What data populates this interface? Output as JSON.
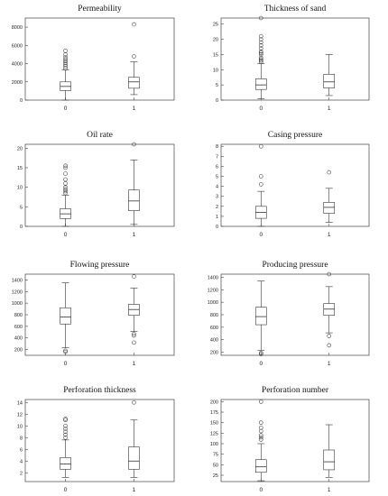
{
  "chart_data": [
    {
      "type": "box",
      "title": "Permeability",
      "categories": [
        "0",
        "1"
      ],
      "ylim": [
        0,
        9000
      ],
      "yticks": [
        0,
        2000,
        4000,
        6000,
        8000
      ],
      "ytick_labels": [
        "0",
        "2000",
        "4000",
        "6000",
        "8000"
      ],
      "boxes": [
        {
          "category": "0",
          "whisker_low": 0,
          "q1": 1050,
          "median": 1500,
          "q3": 2000,
          "whisker_high": 3300,
          "outliers": [
            3500,
            3700,
            3900,
            4100,
            4300,
            4500,
            4700,
            5000,
            5400
          ]
        },
        {
          "category": "1",
          "whisker_low": 600,
          "q1": 1300,
          "median": 2000,
          "q3": 2500,
          "whisker_high": 4200,
          "outliers": [
            4800,
            8300
          ]
        }
      ]
    },
    {
      "type": "box",
      "title": "Thickness of sand",
      "categories": [
        "0",
        "1"
      ],
      "ylim": [
        0,
        27
      ],
      "yticks": [
        0,
        5,
        10,
        15,
        20,
        25
      ],
      "ytick_labels": [
        "0",
        "5",
        "10",
        "15",
        "20",
        "25"
      ],
      "boxes": [
        {
          "category": "0",
          "whisker_low": 0.5,
          "q1": 3.5,
          "median": 5,
          "q3": 7,
          "whisker_high": 12,
          "outliers": [
            12.5,
            13,
            13.5,
            14,
            15,
            15.5,
            16,
            17,
            18,
            19,
            20,
            21,
            27
          ]
        },
        {
          "category": "1",
          "whisker_low": 1.5,
          "q1": 4,
          "median": 6,
          "q3": 8.5,
          "whisker_high": 15,
          "outliers": []
        }
      ]
    },
    {
      "type": "box",
      "title": "Oil rate",
      "categories": [
        "0",
        "1"
      ],
      "ylim": [
        0,
        21
      ],
      "yticks": [
        0,
        5,
        10,
        15,
        20
      ],
      "ytick_labels": [
        "0",
        "5",
        "10",
        "15",
        "20"
      ],
      "boxes": [
        {
          "category": "0",
          "whisker_low": 0,
          "q1": 2,
          "median": 3.2,
          "q3": 4.5,
          "whisker_high": 8,
          "outliers": [
            8.5,
            9,
            9.5,
            10,
            11,
            12,
            13.5,
            15,
            15.5
          ]
        },
        {
          "category": "1",
          "whisker_low": 0.5,
          "q1": 4,
          "median": 6.5,
          "q3": 9.3,
          "whisker_high": 17,
          "outliers": [
            21
          ]
        }
      ]
    },
    {
      "type": "box",
      "title": "Casing pressure",
      "categories": [
        "0",
        "1"
      ],
      "ylim": [
        0,
        8.2
      ],
      "yticks": [
        0,
        1,
        2,
        3,
        4,
        5,
        6,
        7,
        8
      ],
      "ytick_labels": [
        "0",
        "1",
        "2",
        "3",
        "4",
        "5",
        "6",
        "7",
        "8"
      ],
      "boxes": [
        {
          "category": "0",
          "whisker_low": 0,
          "q1": 0.8,
          "median": 1.4,
          "q3": 2.0,
          "whisker_high": 3.5,
          "outliers": [
            4.2,
            5.0,
            8.0
          ]
        },
        {
          "category": "1",
          "whisker_low": 0.4,
          "q1": 1.3,
          "median": 1.9,
          "q3": 2.4,
          "whisker_high": 3.8,
          "outliers": [
            5.4
          ]
        }
      ]
    },
    {
      "type": "box",
      "title": "Flowing pressure",
      "categories": [
        "0",
        "1"
      ],
      "ylim": [
        100,
        1500
      ],
      "yticks": [
        200,
        400,
        600,
        800,
        1000,
        1200,
        1400
      ],
      "ytick_labels": [
        "200",
        "400",
        "600",
        "800",
        "1000",
        "1200",
        "1400"
      ],
      "boxes": [
        {
          "category": "0",
          "whisker_low": 230,
          "q1": 640,
          "median": 760,
          "q3": 920,
          "whisker_high": 1350,
          "outliers": [
            180,
            160
          ]
        },
        {
          "category": "1",
          "whisker_low": 510,
          "q1": 790,
          "median": 890,
          "q3": 980,
          "whisker_high": 1260,
          "outliers": [
            470,
            440,
            320,
            1460
          ]
        }
      ]
    },
    {
      "type": "box",
      "title": "Producing pressure",
      "categories": [
        "0",
        "1"
      ],
      "ylim": [
        150,
        1450
      ],
      "yticks": [
        200,
        400,
        600,
        800,
        1000,
        1200,
        1400
      ],
      "ytick_labels": [
        "200",
        "400",
        "600",
        "800",
        "1000",
        "1200",
        "1400"
      ],
      "boxes": [
        {
          "category": "0",
          "whisker_low": 230,
          "q1": 640,
          "median": 770,
          "q3": 920,
          "whisker_high": 1340,
          "outliers": [
            190,
            170
          ]
        },
        {
          "category": "1",
          "whisker_low": 510,
          "q1": 790,
          "median": 890,
          "q3": 980,
          "whisker_high": 1250,
          "outliers": [
            460,
            310,
            1450
          ]
        }
      ]
    },
    {
      "type": "box",
      "title": "Perforation thickness",
      "categories": [
        "0",
        "1"
      ],
      "ylim": [
        0.5,
        14.5
      ],
      "yticks": [
        2,
        4,
        6,
        8,
        10,
        12,
        14
      ],
      "ytick_labels": [
        "2",
        "4",
        "6",
        "8",
        "10",
        "12",
        "14"
      ],
      "boxes": [
        {
          "category": "0",
          "whisker_low": 1.2,
          "q1": 2.6,
          "median": 3.5,
          "q3": 4.6,
          "whisker_high": 7.6,
          "outliers": [
            8.0,
            8.5,
            9.0,
            9.5,
            10.0,
            11.0,
            11.2
          ]
        },
        {
          "category": "1",
          "whisker_low": 1.2,
          "q1": 2.6,
          "median": 4.0,
          "q3": 6.4,
          "whisker_high": 11.0,
          "outliers": [
            14.0
          ]
        }
      ]
    },
    {
      "type": "box",
      "title": "Perforation number",
      "categories": [
        "0",
        "1"
      ],
      "ylim": [
        10,
        205
      ],
      "yticks": [
        25,
        50,
        75,
        100,
        125,
        150,
        175,
        200
      ],
      "ytick_labels": [
        "25",
        "50",
        "75",
        "100",
        "125",
        "150",
        "175",
        "200"
      ],
      "boxes": [
        {
          "category": "0",
          "whisker_low": 12,
          "q1": 32,
          "median": 45,
          "q3": 62,
          "whisker_high": 100,
          "outliers": [
            110,
            115,
            120,
            130,
            138,
            150,
            200
          ]
        },
        {
          "category": "1",
          "whisker_low": 20,
          "q1": 38,
          "median": 57,
          "q3": 85,
          "whisker_high": 145,
          "outliers": []
        }
      ]
    }
  ]
}
